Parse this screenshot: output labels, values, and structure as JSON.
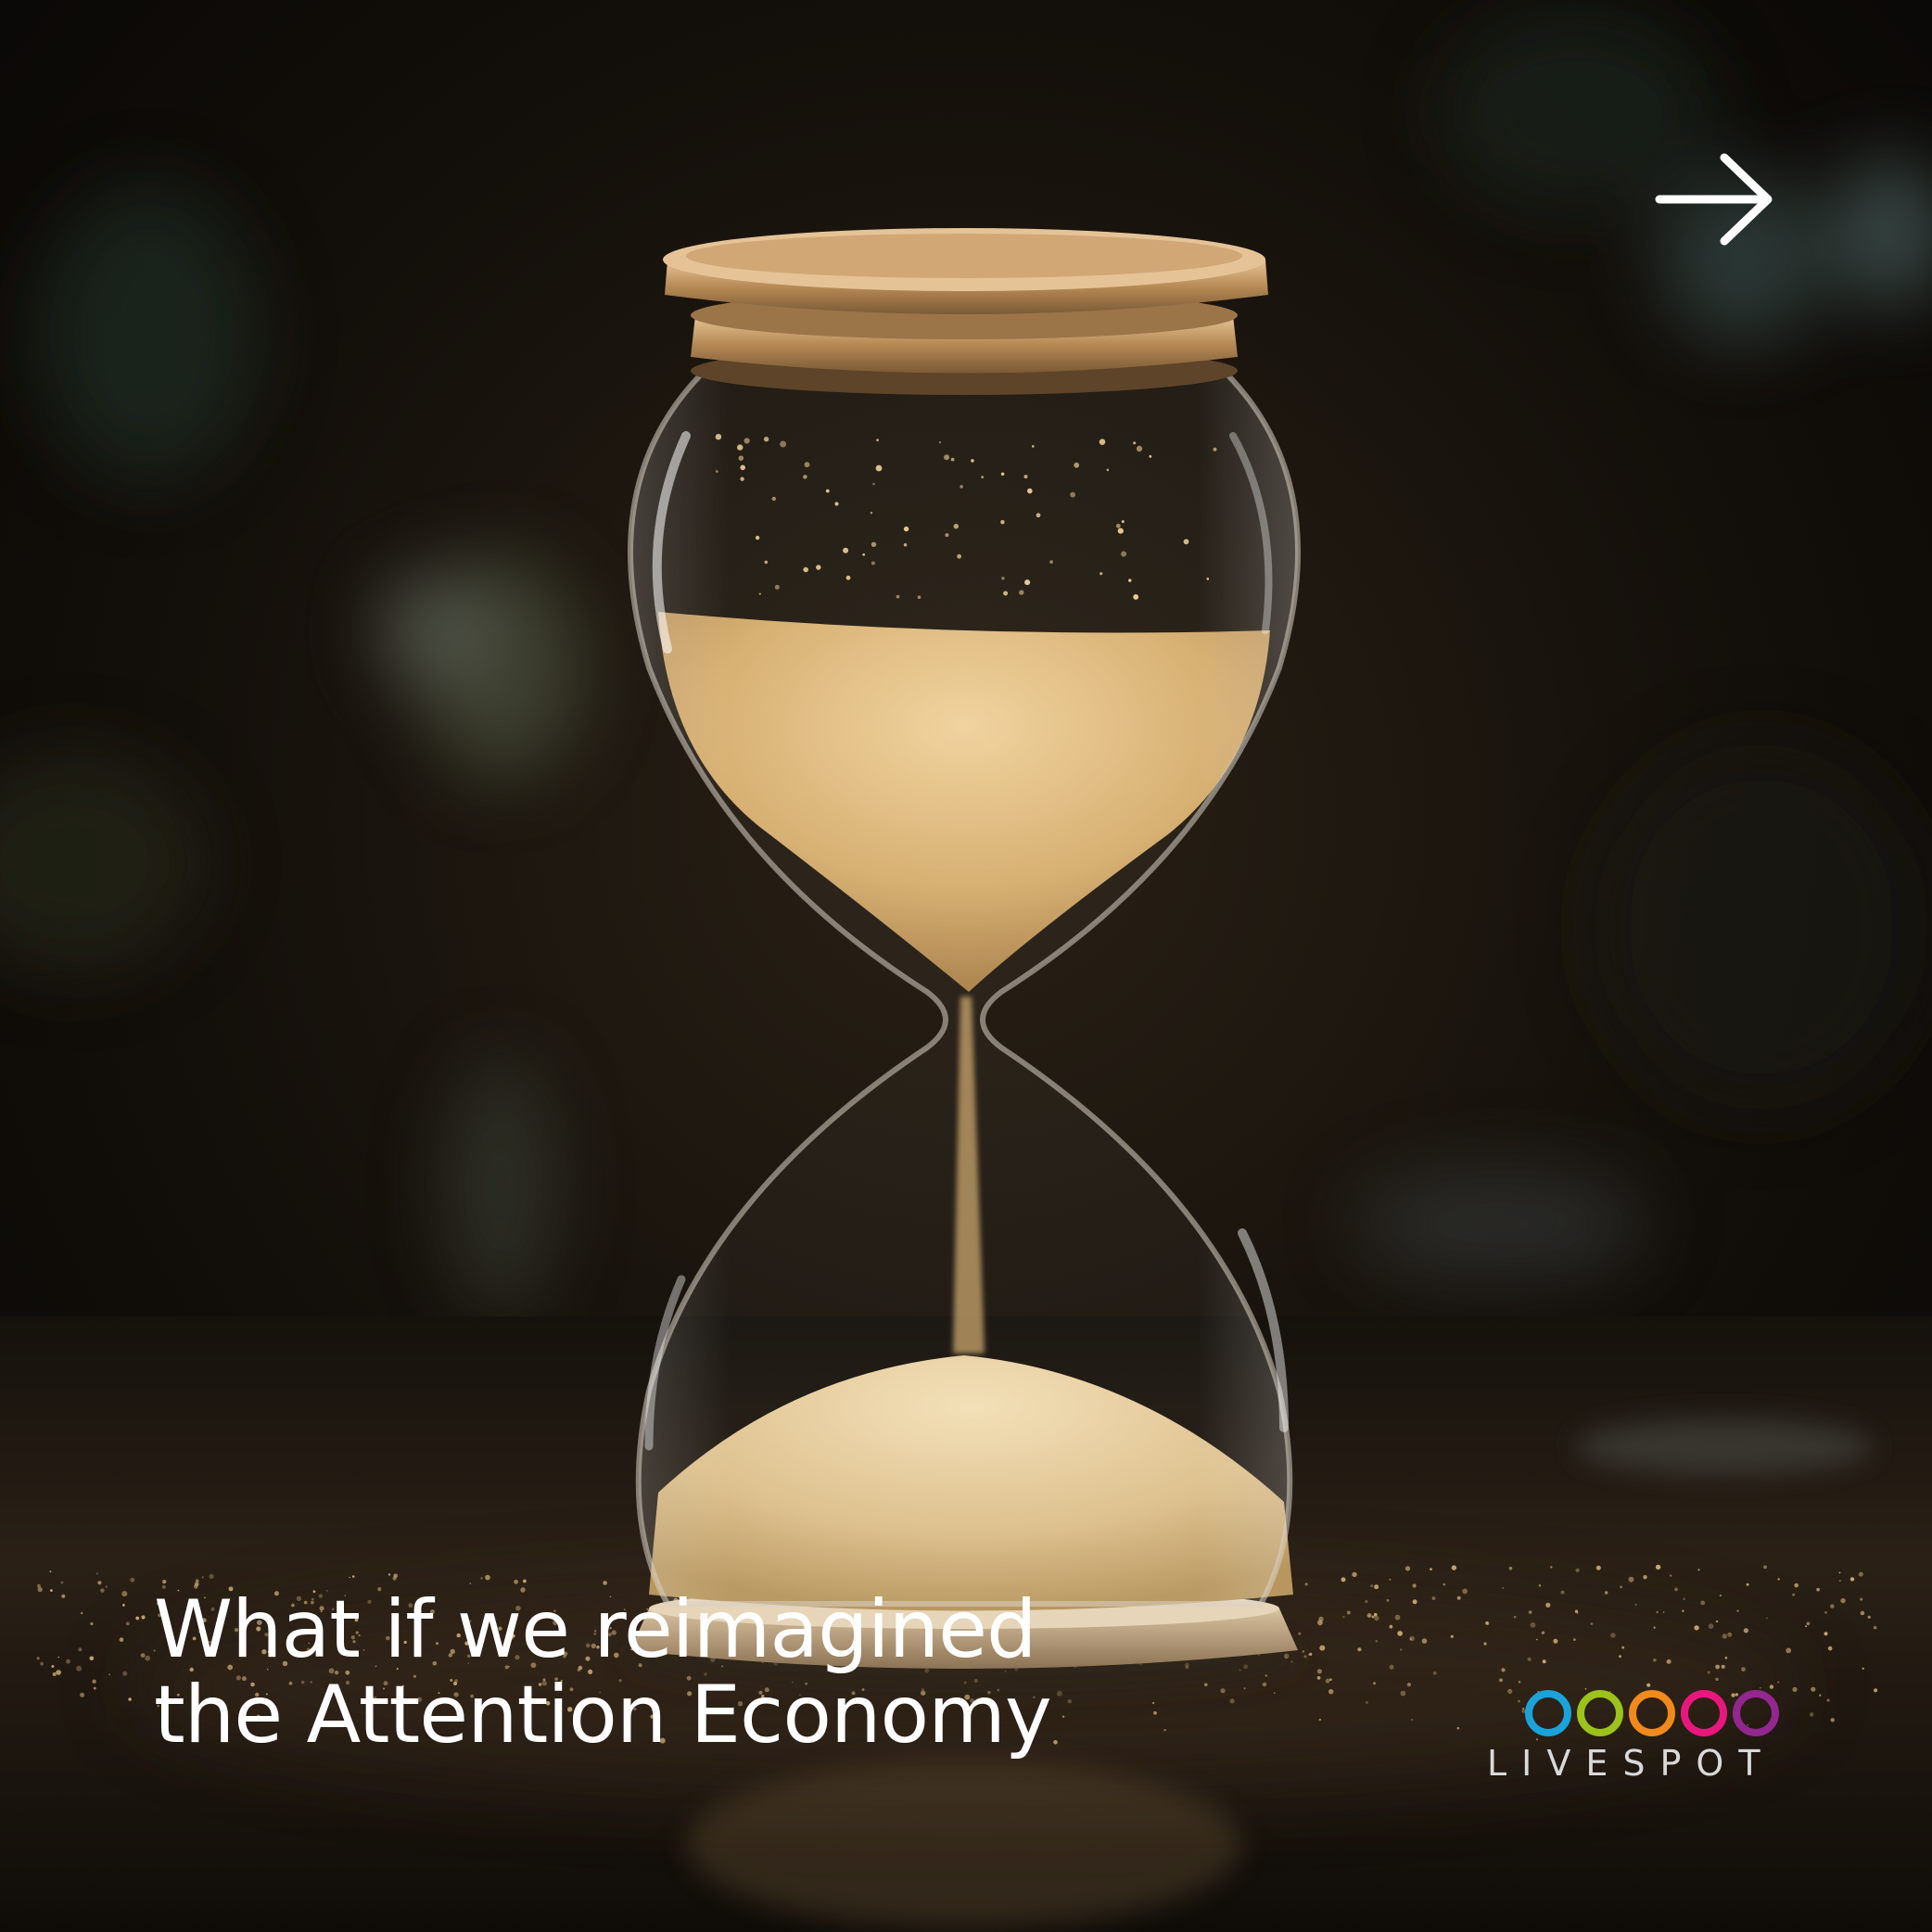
{
  "slide": {
    "headline_line1": "What if we reimagined",
    "headline_line2": "the Attention Economy"
  },
  "brand": {
    "name": "LIVESPOT",
    "ring_colors": [
      "#1aa3d9",
      "#9bc31c",
      "#f08a1c",
      "#e8177d",
      "#93278f"
    ]
  },
  "navigation": {
    "next_icon": "arrow-right-icon"
  },
  "scene": {
    "subject_icon": "hourglass-icon",
    "sand_color": "#d8b47a",
    "wood_color": "#b48a55"
  }
}
